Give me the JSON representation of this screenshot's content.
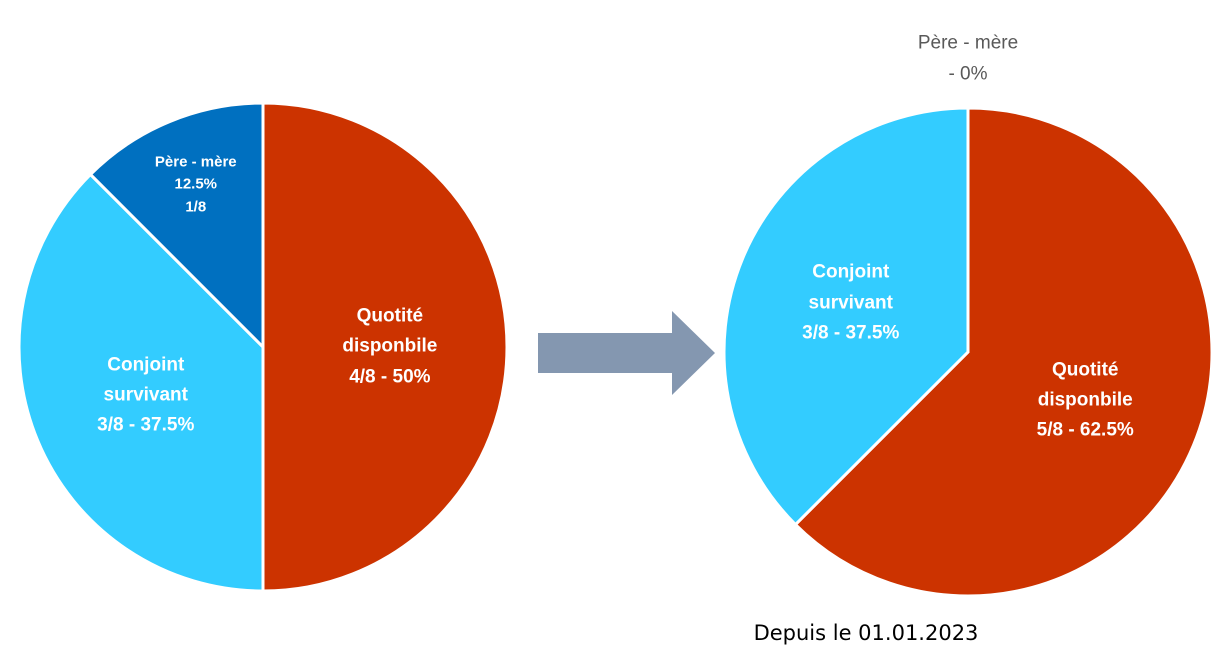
{
  "chart_data": [
    {
      "type": "pie",
      "categories": [
        "Quotité disponbile",
        "Conjoint survivant",
        "Père - mère"
      ],
      "values": [
        50,
        37.5,
        12.5
      ],
      "value_labels": [
        "4/8 - 50%",
        "3/8 - 37.5%",
        "12.5%\n1/8"
      ],
      "colors": [
        "#cc3300",
        "#33ccff",
        "#0070c0"
      ]
    },
    {
      "type": "pie",
      "categories": [
        "Quotité disponbile",
        "Conjoint survivant",
        "Père - mère"
      ],
      "values": [
        62.5,
        37.5,
        0
      ],
      "value_labels": [
        "5/8 - 62.5%",
        "3/8 - 37.5%",
        "- 0%"
      ],
      "colors": [
        "#cc3300",
        "#33ccff",
        "#0070c0"
      ]
    }
  ],
  "caption": "Depuis le 01.01.2023"
}
